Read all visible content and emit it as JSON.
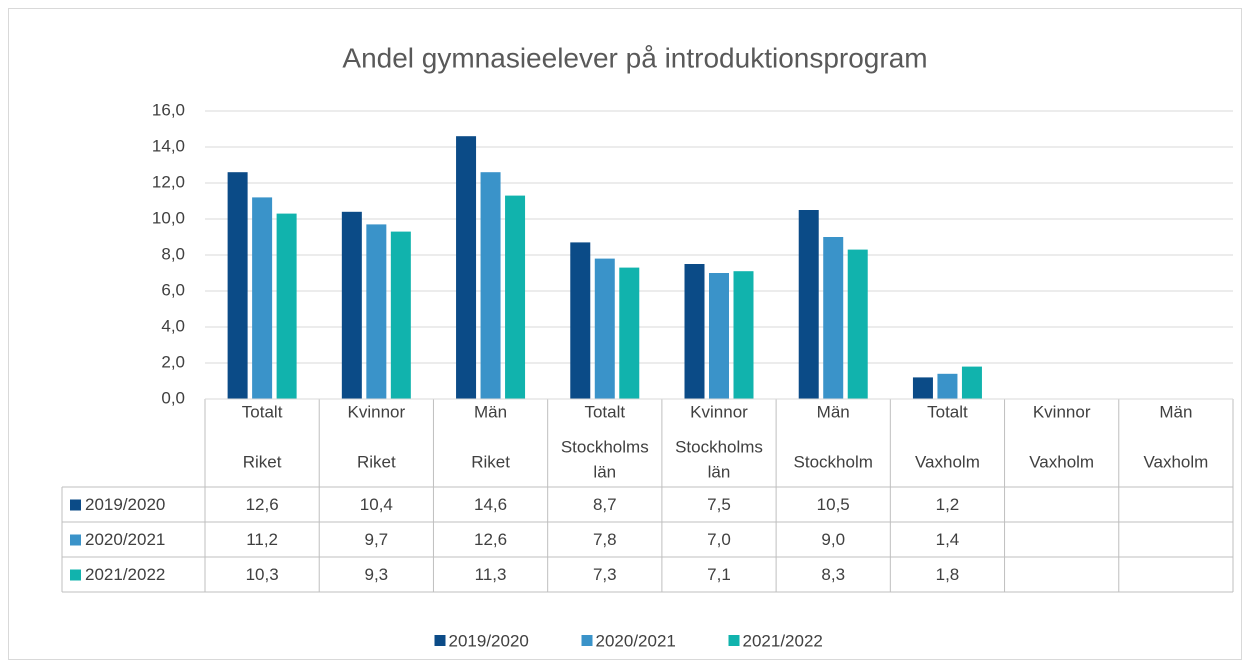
{
  "chart_data": {
    "type": "bar",
    "title": "Andel gymnasieelever på introduktionsprogram",
    "categories": [
      [
        "Totalt",
        "Riket"
      ],
      [
        "Kvinnor",
        "Riket"
      ],
      [
        "Män",
        "Riket"
      ],
      [
        "Totalt",
        "Stockholms",
        "län"
      ],
      [
        "Kvinnor",
        "Stockholms",
        "län"
      ],
      [
        "Män",
        "Stockholm"
      ],
      [
        "Totalt",
        "Vaxholm"
      ],
      [
        "Kvinnor",
        "Vaxholm"
      ],
      [
        "Män",
        "Vaxholm"
      ]
    ],
    "series": [
      {
        "name": "2019/2020",
        "color": "#0b4b87",
        "values": [
          12.6,
          10.4,
          14.6,
          8.7,
          7.5,
          10.5,
          1.2,
          null,
          null
        ],
        "value_labels": [
          "12,6",
          "10,4",
          "14,6",
          "8,7",
          "7,5",
          "10,5",
          "1,2",
          null,
          null
        ]
      },
      {
        "name": "2020/2021",
        "color": "#3a93c9",
        "values": [
          11.2,
          9.7,
          12.6,
          7.8,
          7.0,
          9.0,
          1.4,
          null,
          null
        ],
        "value_labels": [
          "11,2",
          "9,7",
          "12,6",
          "7,8",
          "7,0",
          "9,0",
          "1,4",
          null,
          null
        ]
      },
      {
        "name": "2021/2022",
        "color": "#11b3ad",
        "values": [
          10.3,
          9.3,
          11.3,
          7.3,
          7.1,
          8.3,
          1.8,
          null,
          null
        ],
        "value_labels": [
          "10,3",
          "9,3",
          "11,3",
          "7,3",
          "7,1",
          "8,3",
          "1,8",
          null,
          null
        ]
      }
    ],
    "ylim": [
      0,
      16
    ],
    "yticks": [
      {
        "value": 0,
        "label": "0,0"
      },
      {
        "value": 2,
        "label": "2,0"
      },
      {
        "value": 4,
        "label": "4,0"
      },
      {
        "value": 6,
        "label": "6,0"
      },
      {
        "value": 8,
        "label": "8,0"
      },
      {
        "value": 10,
        "label": "10,0"
      },
      {
        "value": 12,
        "label": "12,0"
      },
      {
        "value": 14,
        "label": "14,0"
      },
      {
        "value": 16,
        "label": "16,0"
      }
    ],
    "grid": true,
    "legend": "bottom",
    "data_table": true
  }
}
